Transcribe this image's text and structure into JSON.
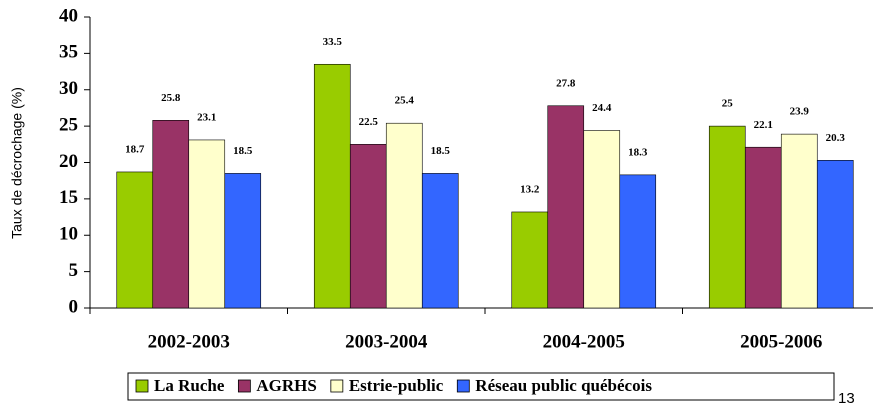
{
  "chart_data": {
    "type": "bar",
    "y_label": "Taux de décrochage (%)",
    "categories": [
      "2002-2003",
      "2003-2004",
      "2004-2005",
      "2005-2006"
    ],
    "series": [
      {
        "name": "La Ruche",
        "color": "#99cc00",
        "values": [
          18.7,
          33.5,
          13.2,
          25
        ]
      },
      {
        "name": "AGRHS",
        "color": "#993366",
        "values": [
          25.8,
          22.5,
          27.8,
          22.1
        ]
      },
      {
        "name": "Estrie-public",
        "color": "#ffffcc",
        "values": [
          23.1,
          25.4,
          24.4,
          23.9
        ]
      },
      {
        "name": "Réseau public québécois",
        "color": "#3366ff",
        "values": [
          18.5,
          18.5,
          18.3,
          20.3
        ]
      }
    ],
    "ylim": [
      0,
      40
    ],
    "yticks": [
      0,
      5,
      10,
      15,
      20,
      25,
      30,
      35,
      40
    ],
    "legend": "bottom",
    "page_number": "13"
  }
}
